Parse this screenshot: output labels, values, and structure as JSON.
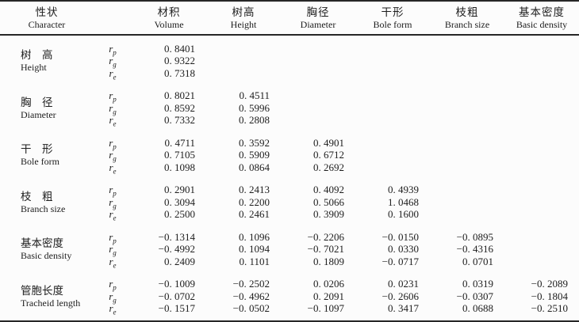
{
  "table": {
    "header": {
      "character_col": {
        "zh": "性状",
        "en": "Character"
      },
      "trait_cols": [
        {
          "zh": "材积",
          "en": "Volume"
        },
        {
          "zh": "树高",
          "en": "Height"
        },
        {
          "zh": "胸径",
          "en": "Diameter"
        },
        {
          "zh": "干形",
          "en": "Bole form"
        },
        {
          "zh": "枝粗",
          "en": "Branch size"
        },
        {
          "zh": "基本密度",
          "en": "Basic density"
        }
      ]
    },
    "correlation_symbol": "r",
    "rows": [
      {
        "zh": "树　高",
        "en": "Height",
        "sub": [
          {
            "r_sub": "p",
            "values": [
              "0. 8401",
              "",
              "",
              "",
              "",
              ""
            ]
          },
          {
            "r_sub": "g",
            "values": [
              "0. 9322",
              "",
              "",
              "",
              "",
              ""
            ]
          },
          {
            "r_sub": "e",
            "values": [
              "0. 7318",
              "",
              "",
              "",
              "",
              ""
            ]
          }
        ]
      },
      {
        "zh": "胸　径",
        "en": "Diameter",
        "sub": [
          {
            "r_sub": "p",
            "values": [
              "0. 8021",
              "0. 4511",
              "",
              "",
              "",
              ""
            ]
          },
          {
            "r_sub": "g",
            "values": [
              "0. 8592",
              "0. 5996",
              "",
              "",
              "",
              ""
            ]
          },
          {
            "r_sub": "e",
            "values": [
              "0. 7332",
              "0. 2808",
              "",
              "",
              "",
              ""
            ]
          }
        ]
      },
      {
        "zh": "干　形",
        "en": "Bole form",
        "sub": [
          {
            "r_sub": "p",
            "values": [
              "0. 4711",
              "0. 3592",
              "0. 4901",
              "",
              "",
              ""
            ]
          },
          {
            "r_sub": "g",
            "values": [
              "0. 7105",
              "0. 5909",
              "0. 6712",
              "",
              "",
              ""
            ]
          },
          {
            "r_sub": "e",
            "values": [
              "0. 1098",
              "0. 0864",
              "0. 2692",
              "",
              "",
              ""
            ]
          }
        ]
      },
      {
        "zh": "枝　粗",
        "en": "Branch size",
        "sub": [
          {
            "r_sub": "p",
            "values": [
              "0. 2901",
              "0. 2413",
              "0. 4092",
              "0. 4939",
              "",
              ""
            ]
          },
          {
            "r_sub": "g",
            "values": [
              "0. 3094",
              "0. 2200",
              "0. 5066",
              "1. 0468",
              "",
              ""
            ]
          },
          {
            "r_sub": "e",
            "values": [
              "0. 2500",
              "0. 2461",
              "0. 3909",
              "0. 1600",
              "",
              ""
            ]
          }
        ]
      },
      {
        "zh": "基本密度",
        "en": "Basic density",
        "sub": [
          {
            "r_sub": "p",
            "values": [
              "−0. 1314",
              "0. 1096",
              "−0. 2206",
              "−0. 0150",
              "−0. 0895",
              ""
            ]
          },
          {
            "r_sub": "g",
            "values": [
              "−0. 4992",
              "0. 1094",
              "−0. 7021",
              "0. 0330",
              "−0. 4316",
              ""
            ]
          },
          {
            "r_sub": "e",
            "values": [
              "0. 2409",
              "0. 1101",
              "0. 1809",
              "−0. 0717",
              "0. 0701",
              ""
            ]
          }
        ]
      },
      {
        "zh": "管胞长度",
        "en": "Tracheid length",
        "sub": [
          {
            "r_sub": "p",
            "values": [
              "−0. 1009",
              "−0. 2502",
              "0. 0206",
              "0. 0231",
              "0. 0319",
              "−0. 2089"
            ]
          },
          {
            "r_sub": "g",
            "values": [
              "−0. 0702",
              "−0. 4962",
              "0. 2091",
              "−0. 2606",
              "−0. 0307",
              "−0. 1804"
            ]
          },
          {
            "r_sub": "e",
            "values": [
              "−0. 1517",
              "−0. 0502",
              "−0. 1097",
              "0. 3417",
              "0. 0688",
              "−0. 2510"
            ]
          }
        ]
      }
    ]
  },
  "colors": {
    "rule": "#262626",
    "text": "#1d1d1d",
    "background": "#fcfcfc"
  }
}
